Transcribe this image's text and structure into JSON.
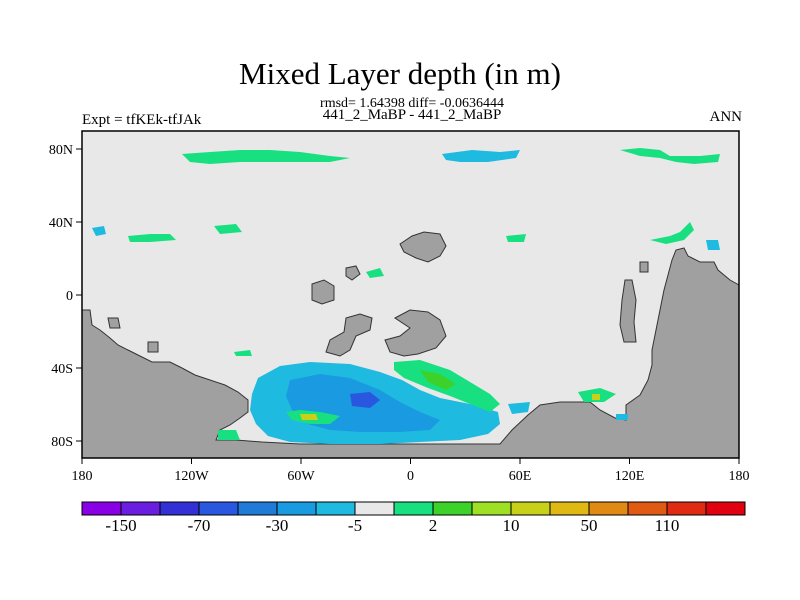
{
  "header": {
    "title": "Mixed Layer depth (in m)",
    "stats": "rmsd= 1.64398 diff= -0.0636444",
    "subtitle": "441_2_MaBP - 441_2_MaBP",
    "left_label": "Expt = tfKEk-tfJAk",
    "right_label": "ANN"
  },
  "axes": {
    "x_ticks": [
      "180",
      "120W",
      "60W",
      "0",
      "60E",
      "120E",
      "180"
    ],
    "y_ticks": [
      "80N",
      "40N",
      "0",
      "40S",
      "80S"
    ]
  },
  "colorbar": {
    "colors": [
      "#8a00e6",
      "#6a1fe0",
      "#3131d6",
      "#2a57e0",
      "#1f7ad8",
      "#1a9ae0",
      "#1fbae0",
      "#e8e8e8",
      "#18e080",
      "#3cd22a",
      "#9ee024",
      "#c8d018",
      "#e0b814",
      "#e08a14",
      "#e05a14",
      "#e02a14",
      "#e00010"
    ],
    "labels": [
      "-150",
      "-70",
      "-30",
      "-5",
      "2",
      "10",
      "50",
      "110"
    ]
  },
  "map_colors": {
    "land": "#a0a0a0",
    "ocean": "#e8e8e8",
    "positive_small": "#18e080",
    "positive_mid": "#3cd22a",
    "positive_high": "#c8d018",
    "negative_small": "#1fbae0",
    "negative_mid": "#1a9ae0",
    "negative_high": "#2a57e0"
  }
}
